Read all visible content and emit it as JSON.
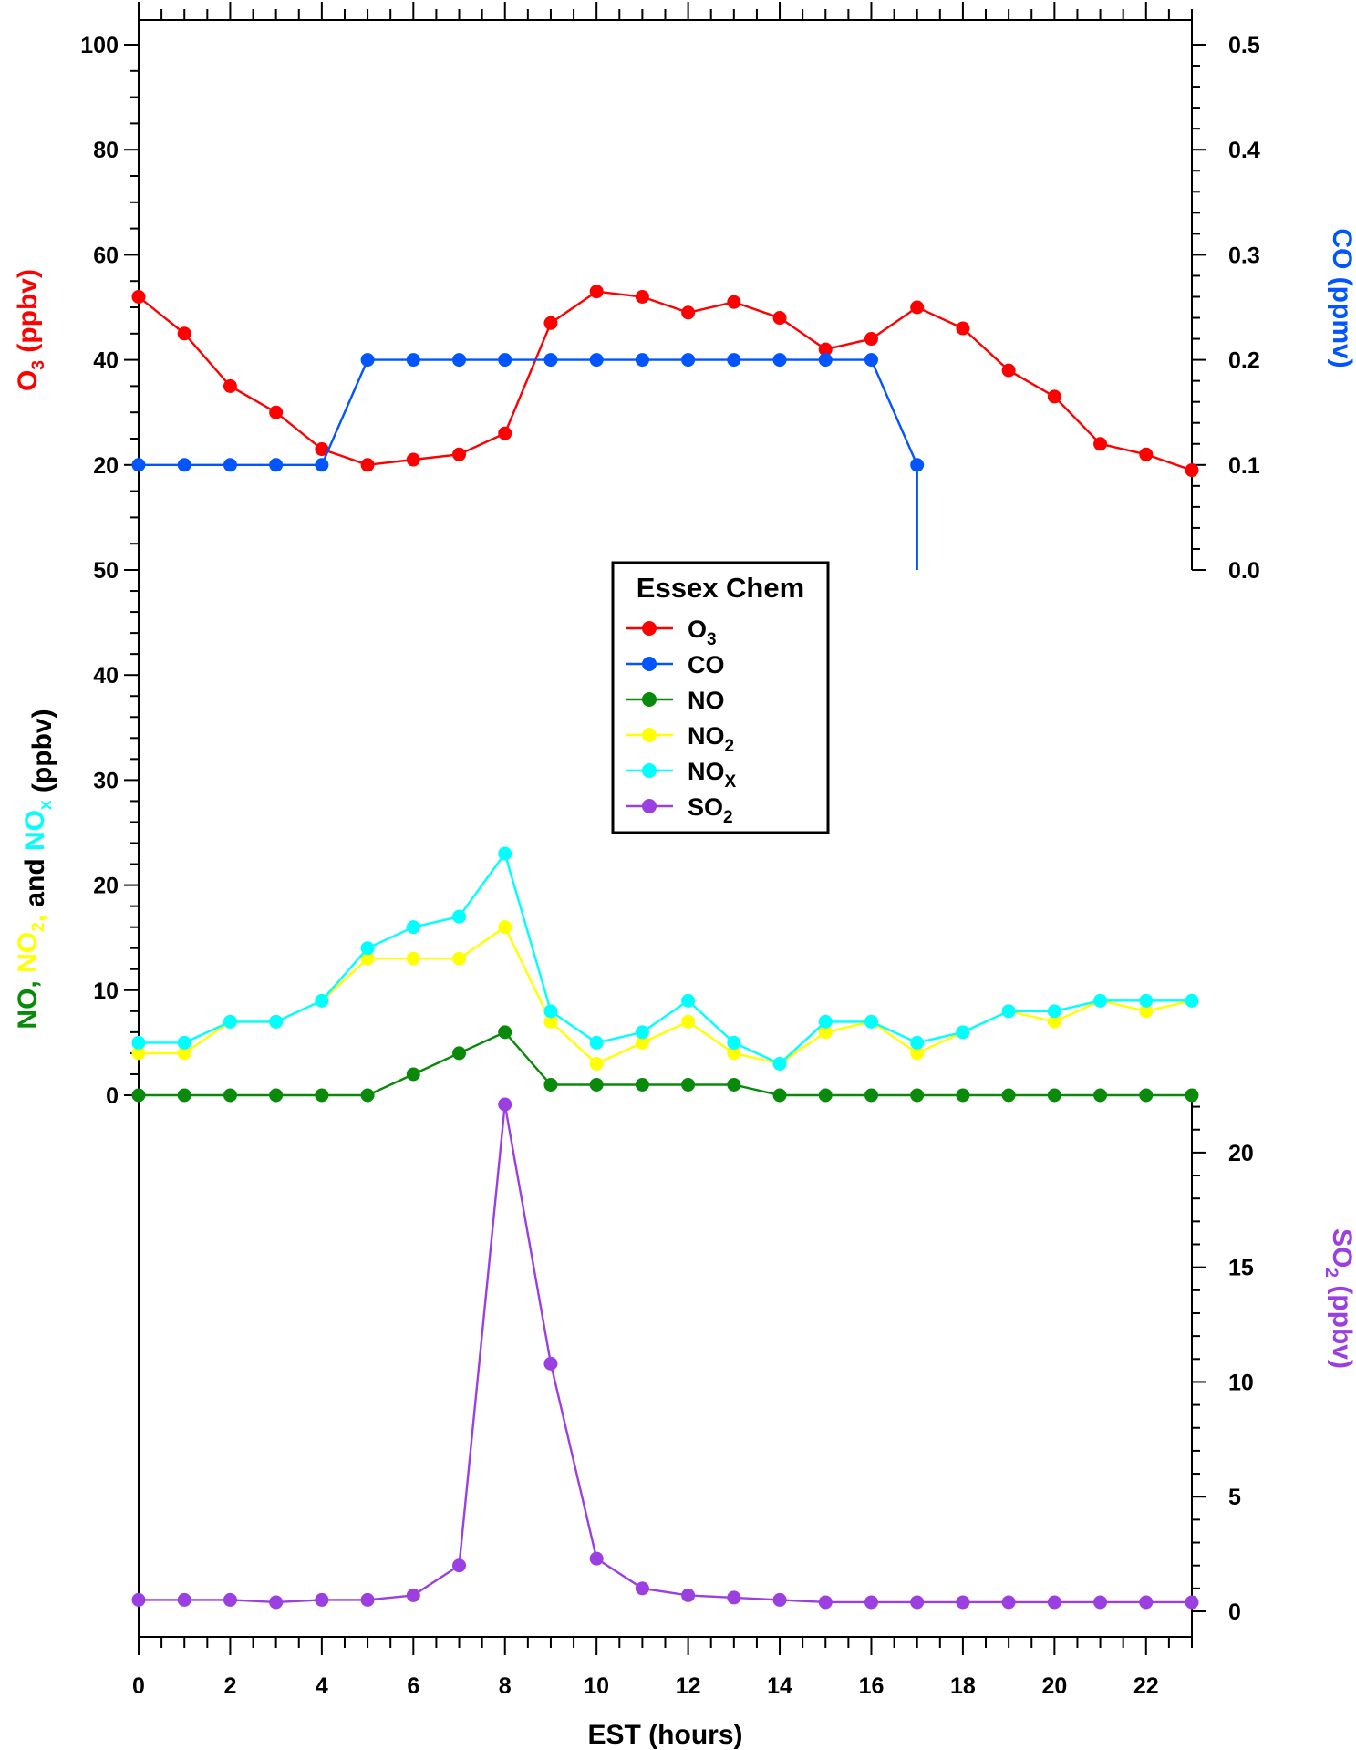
{
  "chart_data": {
    "type": "line",
    "legend": {
      "title": "Essex Chem",
      "placement": "center"
    },
    "x": {
      "label": "EST (hours)",
      "range": [
        0,
        23
      ],
      "tick_labels": [
        "0",
        "2",
        "4",
        "6",
        "8",
        "10",
        "12",
        "14",
        "16",
        "18",
        "20",
        "22"
      ],
      "values": [
        0,
        1,
        2,
        3,
        4,
        5,
        6,
        7,
        8,
        9,
        10,
        11,
        12,
        13,
        14,
        15,
        16,
        17,
        18,
        19,
        20,
        21,
        22,
        23
      ]
    },
    "axes": {
      "o3": {
        "label_main": "O",
        "label_sub": "3",
        "label_rest": " (ppbv)",
        "range": [
          0,
          100
        ],
        "tick_labels": [
          "20",
          "40",
          "60",
          "80",
          "100"
        ]
      },
      "co": {
        "label": "CO (ppmv)",
        "range": [
          0,
          0.5
        ],
        "tick_labels": [
          "0.0",
          "0.1",
          "0.2",
          "0.3",
          "0.4",
          "0.5"
        ]
      },
      "nox": {
        "range": [
          0,
          50
        ],
        "tick_labels": [
          "0",
          "10",
          "20",
          "30",
          "40",
          "50"
        ],
        "label_parts": [
          {
            "text": "NO, ",
            "color": "#0a8a0a",
            "sub": ""
          },
          {
            "text": "NO",
            "color": "#ffff00",
            "sub": "2"
          },
          {
            "text": ", ",
            "color": "#ffff00",
            "sub": ""
          },
          {
            "text": "and ",
            "color": "#000000",
            "sub": ""
          },
          {
            "text": "NO",
            "color": "#00ffff",
            "sub": "x"
          },
          {
            "text": " (ppbv)",
            "color": "#000000",
            "sub": ""
          }
        ]
      },
      "so2": {
        "label_main": "SO",
        "label_sub": "2",
        "label_rest": " (ppbv)",
        "range": [
          0,
          22.5
        ],
        "tick_labels": [
          "0",
          "5",
          "10",
          "15",
          "20"
        ]
      }
    },
    "series": [
      {
        "name": "O",
        "sub": "3",
        "axis": "o3",
        "color": "#ff0000",
        "values": [
          52,
          45,
          35,
          30,
          23,
          20,
          21,
          22,
          26,
          47,
          53,
          52,
          49,
          51,
          48,
          42,
          44,
          50,
          46,
          38,
          33,
          24,
          22,
          19
        ]
      },
      {
        "name": "CO",
        "sub": "",
        "axis": "co",
        "color": "#0055ff",
        "values": [
          0.1,
          0.1,
          0.1,
          0.1,
          0.1,
          0.2,
          0.2,
          0.2,
          0.2,
          0.2,
          0.2,
          0.2,
          0.2,
          0.2,
          0.2,
          0.2,
          0.2,
          0.1,
          null,
          null,
          null,
          null,
          null,
          null
        ],
        "drop_to_axis_after": 17
      },
      {
        "name": "NO",
        "sub": "",
        "axis": "nox",
        "color": "#0a8a0a",
        "values": [
          0,
          0,
          0,
          0,
          0,
          0,
          2,
          4,
          6,
          1,
          1,
          1,
          1,
          1,
          0,
          0,
          0,
          0,
          0,
          0,
          0,
          0,
          0,
          0
        ]
      },
      {
        "name": "NO",
        "sub": "2",
        "axis": "nox",
        "color": "#ffff00",
        "values": [
          4,
          4,
          7,
          7,
          9,
          13,
          13,
          13,
          16,
          7,
          3,
          5,
          7,
          4,
          3,
          6,
          7,
          4,
          6,
          8,
          7,
          9,
          8,
          9
        ]
      },
      {
        "name": "NO",
        "sub": "X",
        "axis": "nox",
        "color": "#00ffff",
        "values": [
          5,
          5,
          7,
          7,
          9,
          14,
          16,
          17,
          23,
          8,
          5,
          6,
          9,
          5,
          3,
          7,
          7,
          5,
          6,
          8,
          8,
          9,
          9,
          9
        ]
      },
      {
        "name": "SO",
        "sub": "2",
        "axis": "so2",
        "color": "#9b3fe0",
        "values": [
          0.5,
          0.5,
          0.5,
          0.4,
          0.5,
          0.5,
          0.7,
          2.0,
          22.1,
          10.8,
          2.3,
          1.0,
          0.7,
          0.6,
          0.5,
          0.4,
          0.4,
          0.4,
          0.4,
          0.4,
          0.4,
          0.4,
          0.4,
          0.4
        ]
      }
    ]
  }
}
